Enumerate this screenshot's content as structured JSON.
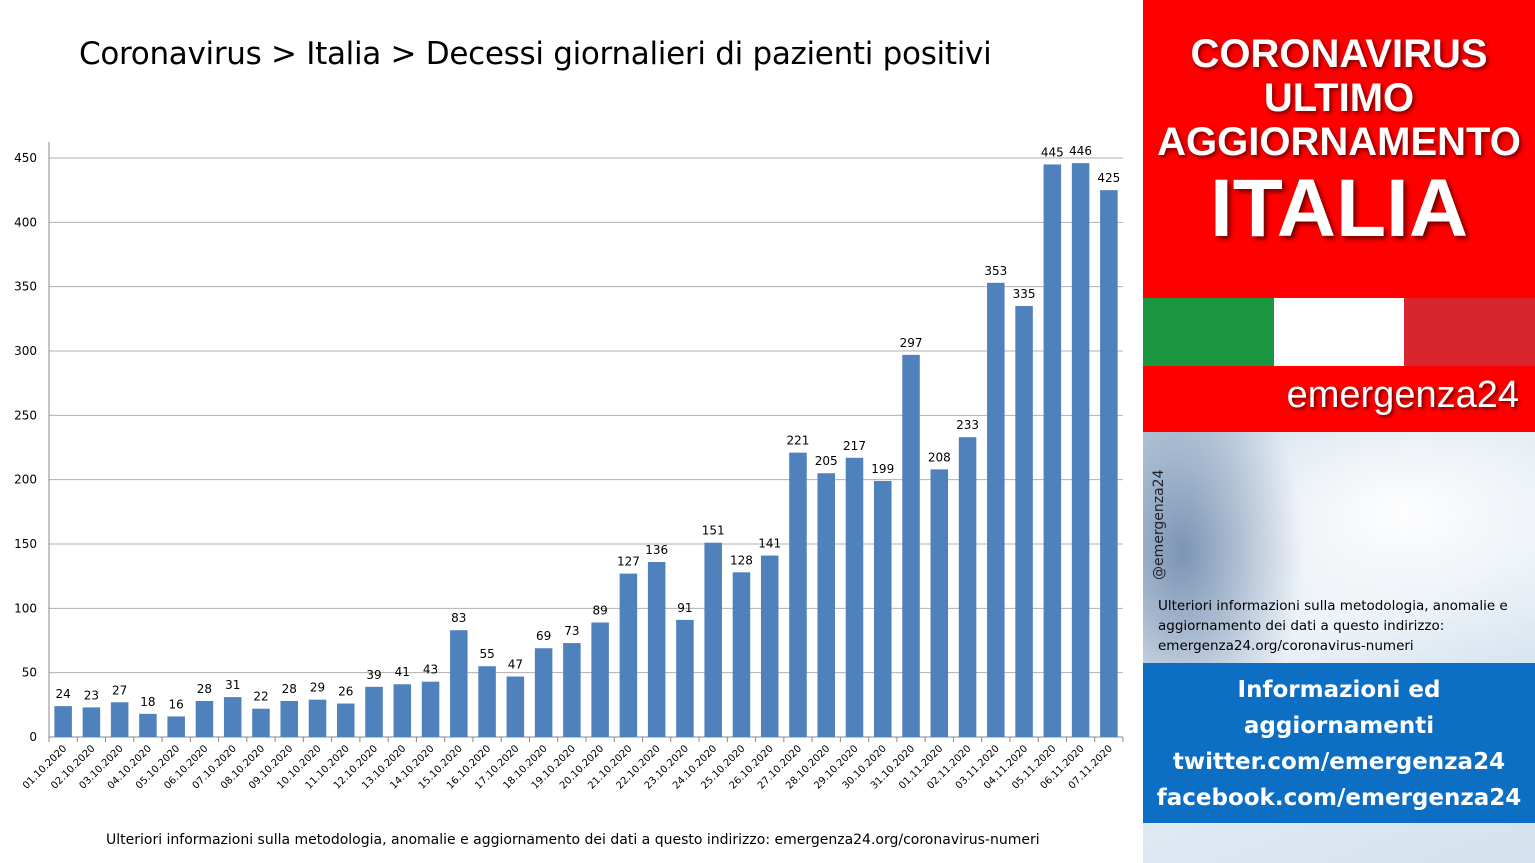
{
  "title": "Coronavirus > Italia > Decessi giornalieri di pazienti positivi",
  "footnote": "Ulteriori informazioni sulla metodologia, anomalie e aggiornamento dei dati a questo indirizzo: emergenza24.org/coronavirus-numeri",
  "chart_data": {
    "type": "bar",
    "title": "Coronavirus > Italia > Decessi giornalieri di pazienti positivi",
    "xlabel": "",
    "ylabel": "",
    "ylim": [
      0,
      450
    ],
    "yticks": [
      0,
      50,
      100,
      150,
      200,
      250,
      300,
      350,
      400,
      450
    ],
    "grid": true,
    "legend": "none",
    "bar_color": "#4f81bd",
    "categories": [
      "01.10.2020",
      "02.10.2020",
      "03.10.2020",
      "04.10.2020",
      "05.10.2020",
      "06.10.2020",
      "07.10.2020",
      "08.10.2020",
      "09.10.2020",
      "10.10.2020",
      "11.10.2020",
      "12.10.2020",
      "13.10.2020",
      "14.10.2020",
      "15.10.2020",
      "16.10.2020",
      "17.10.2020",
      "18.10.2020",
      "19.10.2020",
      "20.10.2020",
      "21.10.2020",
      "22.10.2020",
      "23.10.2020",
      "24.10.2020",
      "25.10.2020",
      "26.10.2020",
      "27.10.2020",
      "28.10.2020",
      "29.10.2020",
      "30.10.2020",
      "31.10.2020",
      "01.11.2020",
      "02.11.2020",
      "03.11.2020",
      "04.11.2020",
      "05.11.2020",
      "06.11.2020",
      "07.11.2020"
    ],
    "values": [
      24,
      23,
      27,
      18,
      16,
      28,
      31,
      22,
      28,
      29,
      26,
      39,
      41,
      43,
      83,
      55,
      47,
      69,
      73,
      89,
      127,
      136,
      91,
      151,
      128,
      141,
      221,
      205,
      217,
      199,
      297,
      208,
      233,
      353,
      335,
      445,
      446,
      425
    ]
  },
  "panel": {
    "banner_lines": [
      "CORONAVIRUS",
      "ULTIMO",
      "AGGIORNAMENTO"
    ],
    "country": "ITALIA",
    "brand": "emergenza24",
    "handle": "@emergenza24",
    "info_text": "Ulteriori informazioni sulla metodologia, anomalie e aggiornamento dei dati a questo indirizzo: emergenza24.org/coronavirus-numeri",
    "blue_lines": [
      "Informazioni ed",
      "aggiornamenti",
      "twitter.com/emergenza24",
      "facebook.com/emergenza24"
    ],
    "flag_colors": [
      "#1a9641",
      "#ffffff",
      "#d7262e"
    ]
  }
}
